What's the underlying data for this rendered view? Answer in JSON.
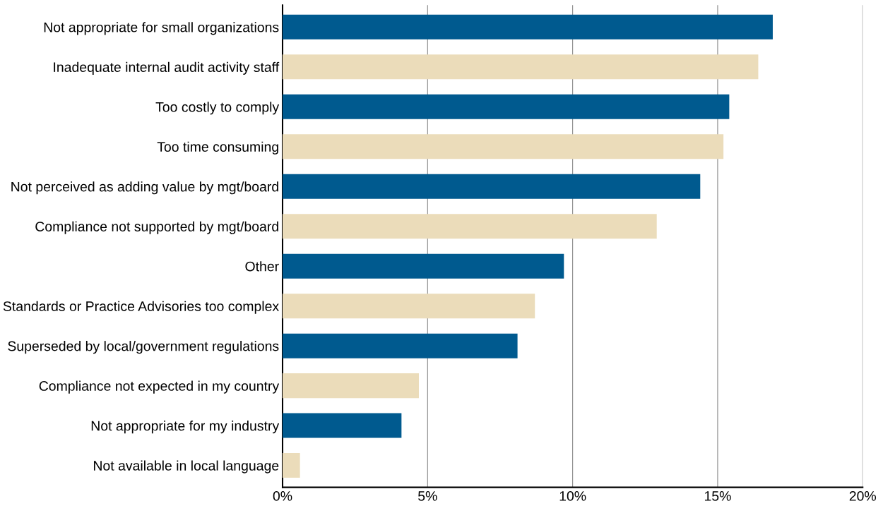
{
  "chart_data": {
    "type": "bar",
    "orientation": "horizontal",
    "categories": [
      "Not appropriate for small organizations",
      "Inadequate internal audit activity staff",
      "Too costly to comply",
      "Too time consuming",
      "Not perceived as adding value by mgt/board",
      "Compliance not supported by mgt/board",
      "Other",
      "Standards or Practice Advisories too complex",
      "Superseded by local/government regulations",
      "Compliance not expected in my country",
      "Not appropriate for my industry",
      "Not available in local language"
    ],
    "values": [
      16.9,
      16.4,
      15.4,
      15.2,
      14.4,
      12.9,
      9.7,
      8.7,
      8.1,
      4.7,
      4.1,
      0.6
    ],
    "colors": [
      "#005a8f",
      "#ebdcba",
      "#005a8f",
      "#ebdcba",
      "#005a8f",
      "#ebdcba",
      "#005a8f",
      "#ebdcba",
      "#005a8f",
      "#ebdcba",
      "#005a8f",
      "#ebdcba"
    ],
    "xlim": [
      0,
      20
    ],
    "xticks": [
      {
        "value": 0,
        "label": "0%"
      },
      {
        "value": 5,
        "label": "5%"
      },
      {
        "value": 10,
        "label": "10%"
      },
      {
        "value": 15,
        "label": "15%"
      },
      {
        "value": 20,
        "label": "20%"
      }
    ],
    "grid": "x",
    "legend": false
  }
}
